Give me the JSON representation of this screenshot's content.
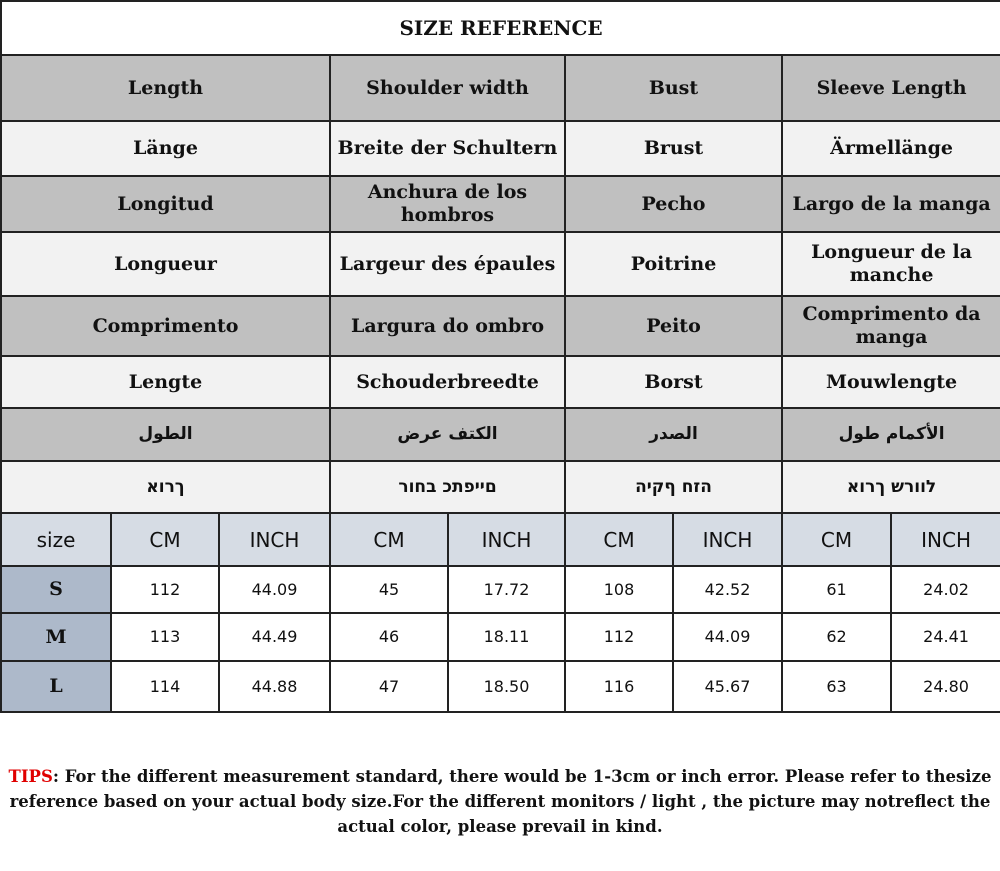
{
  "title": "SIZE REFERENCE",
  "languages": [
    [
      "Length",
      "Shoulder width",
      "Bust",
      "Sleeve Length"
    ],
    [
      "Länge",
      "Breite der Schultern",
      "Brust",
      "Ärmellänge"
    ],
    [
      "Longitud",
      "Anchura de los hombros",
      "Pecho",
      "Largo de la manga"
    ],
    [
      "Longueur",
      "Largeur des épaules",
      "Poitrine",
      "Longueur de la manche"
    ],
    [
      "Comprimento",
      "Largura do ombro",
      "Peito",
      "Comprimento da manga"
    ],
    [
      "Lengte",
      "Schouderbreedte",
      "Borst",
      "Mouwlengte"
    ],
    [
      "الطول",
      "الكتف عرض",
      "الصدر",
      "الأكمام طول"
    ],
    [
      "ךרוא",
      "םייפתכ בחור",
      "הזח ףקיה",
      "לוורש ךרוא"
    ]
  ],
  "units_header": [
    "size",
    "CM",
    "INCH",
    "CM",
    "INCH",
    "CM",
    "INCH",
    "CM",
    "INCH"
  ],
  "rows": [
    [
      "S",
      "112",
      "44.09",
      "45",
      "17.72",
      "108",
      "42.52",
      "61",
      "24.02"
    ],
    [
      "M",
      "113",
      "44.49",
      "46",
      "18.11",
      "112",
      "44.09",
      "62",
      "24.41"
    ],
    [
      "L",
      "114",
      "44.88",
      "47",
      "18.50",
      "116",
      "45.67",
      "63",
      "24.80"
    ]
  ],
  "tips": {
    "label": "TIPS",
    "text": ": For the different measurement standard, there would be 1-3cm or inch error. Please refer to thesize reference based on your actual body size.For the different monitors / light , the picture may notreflect the actual color, please prevail in kind."
  }
}
